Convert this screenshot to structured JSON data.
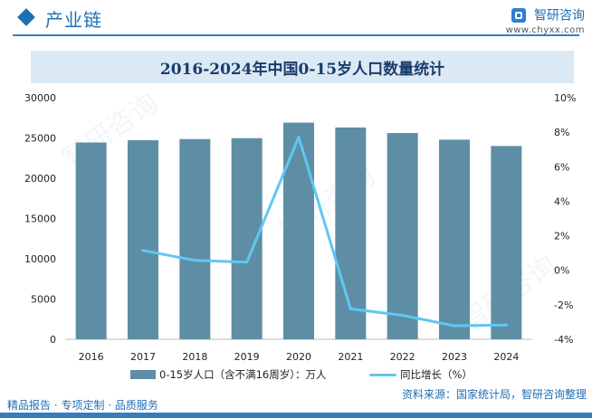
{
  "header": {
    "section_title": "产业链",
    "brand_name": "智研咨询",
    "brand_url": "www.chyxx.com"
  },
  "legend": {
    "bar_label": "0-15岁人口（含不满16周岁）：万人",
    "line_label": "同比增长（%）"
  },
  "footer": {
    "left_text": "精品报告 · 专项定制 · 品质服务",
    "right_text": "资料来源：国家统计局，智研咨询整理"
  },
  "watermark_text": "智研咨询",
  "colors": {
    "bar": "#5e8ea5",
    "line": "#5ec8f2",
    "title_band": "#dbe9f5",
    "brand": "#1f6fb5"
  },
  "chart_data": {
    "type": "bar",
    "title": "2016-2024年中国0-15岁人口数量统计",
    "categories": [
      "2016",
      "2017",
      "2018",
      "2019",
      "2020",
      "2021",
      "2022",
      "2023",
      "2024"
    ],
    "series": [
      {
        "name": "0-15岁人口（含不满16周岁）：万人",
        "type": "bar",
        "axis": "left",
        "values": [
          24438,
          24719,
          24860,
          24977,
          26904,
          26302,
          25615,
          24789,
          24002
        ]
      },
      {
        "name": "同比增长（%）",
        "type": "line",
        "axis": "right",
        "values": [
          null,
          1.15,
          0.57,
          0.47,
          7.72,
          -2.24,
          -2.61,
          -3.22,
          -3.17
        ]
      }
    ],
    "left_axis": {
      "ylim": [
        0,
        30000
      ],
      "ticks": [
        0,
        5000,
        10000,
        15000,
        20000,
        25000,
        30000
      ]
    },
    "right_axis": {
      "ylim": [
        -4,
        10
      ],
      "ticks": [
        "-4%",
        "-2%",
        "0%",
        "2%",
        "4%",
        "6%",
        "8%",
        "10%"
      ]
    },
    "grid": false,
    "legend_position": "bottom"
  }
}
